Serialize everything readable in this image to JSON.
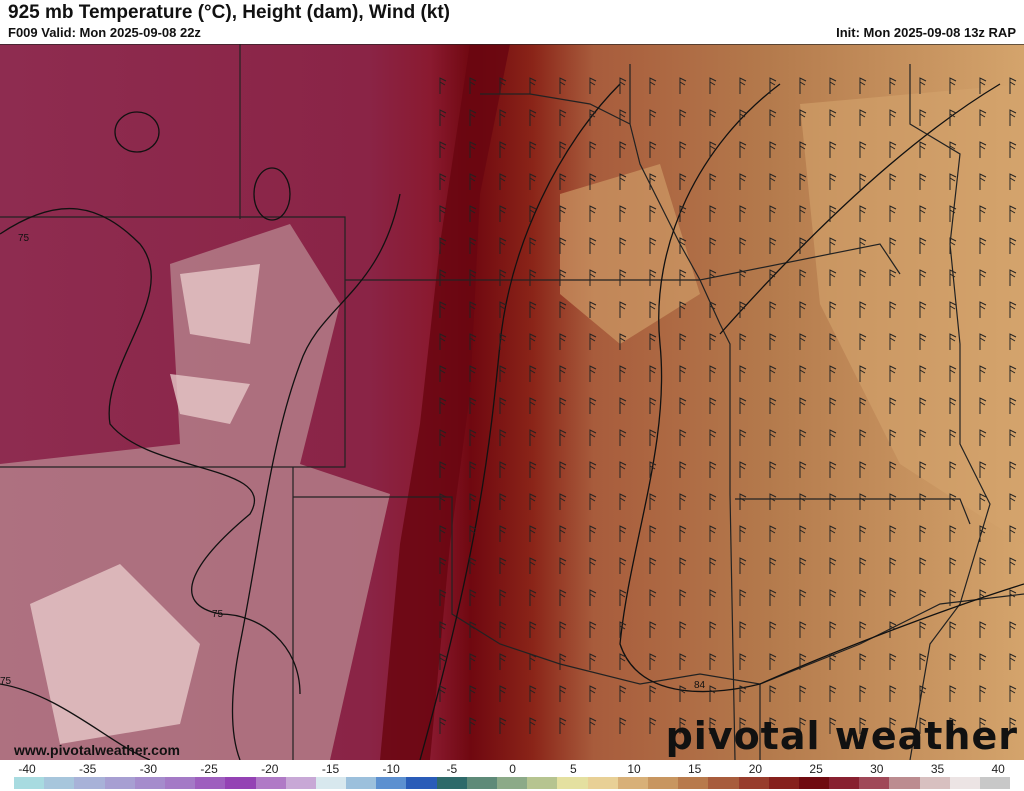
{
  "header": {
    "title": "925 mb Temperature (°C), Height (dam), Wind (kt)",
    "valid": "F009 Valid: Mon 2025-09-08 22z",
    "init": "Init: Mon 2025-09-08 13z RAP"
  },
  "map": {
    "contour_labels": [
      "75",
      "75",
      "75",
      "84"
    ],
    "colors": {
      "cool_magenta": "#8e2c50",
      "pink": "#c99a9c",
      "light_pink": "#e6c8c8",
      "dark_red": "#780810",
      "brown": "#b47a4c",
      "tan": "#d4a46c"
    }
  },
  "footer": {
    "website": "www.pivotalweather.com",
    "brand": "pivotal weather"
  },
  "colorbar": {
    "ticks": [
      "-40",
      "-35",
      "-30",
      "-25",
      "-20",
      "-15",
      "-10",
      "-5",
      "0",
      "5",
      "10",
      "15",
      "20",
      "25",
      "30",
      "35",
      "40"
    ],
    "colors": [
      "#a8dbe0",
      "#a7c6dc",
      "#a8b2d8",
      "#a79fd2",
      "#a58ccc",
      "#a47ac6",
      "#9e5fbe",
      "#9442b4",
      "#b07ac6",
      "#c8a8d6",
      "#d8e8ee",
      "#9cc0dc",
      "#5c90d0",
      "#2a5cb8",
      "#2e6a6a",
      "#5e8a78",
      "#8caa88",
      "#b6c490",
      "#e4e0a0",
      "#e8d096",
      "#d8b078",
      "#c89660",
      "#b87a4c",
      "#a85c3c",
      "#983c2c",
      "#86201c",
      "#700a10",
      "#882030",
      "#a04858",
      "#bc8c90",
      "#d8c0c0",
      "#ece4e4",
      "#c8c8c8"
    ]
  }
}
